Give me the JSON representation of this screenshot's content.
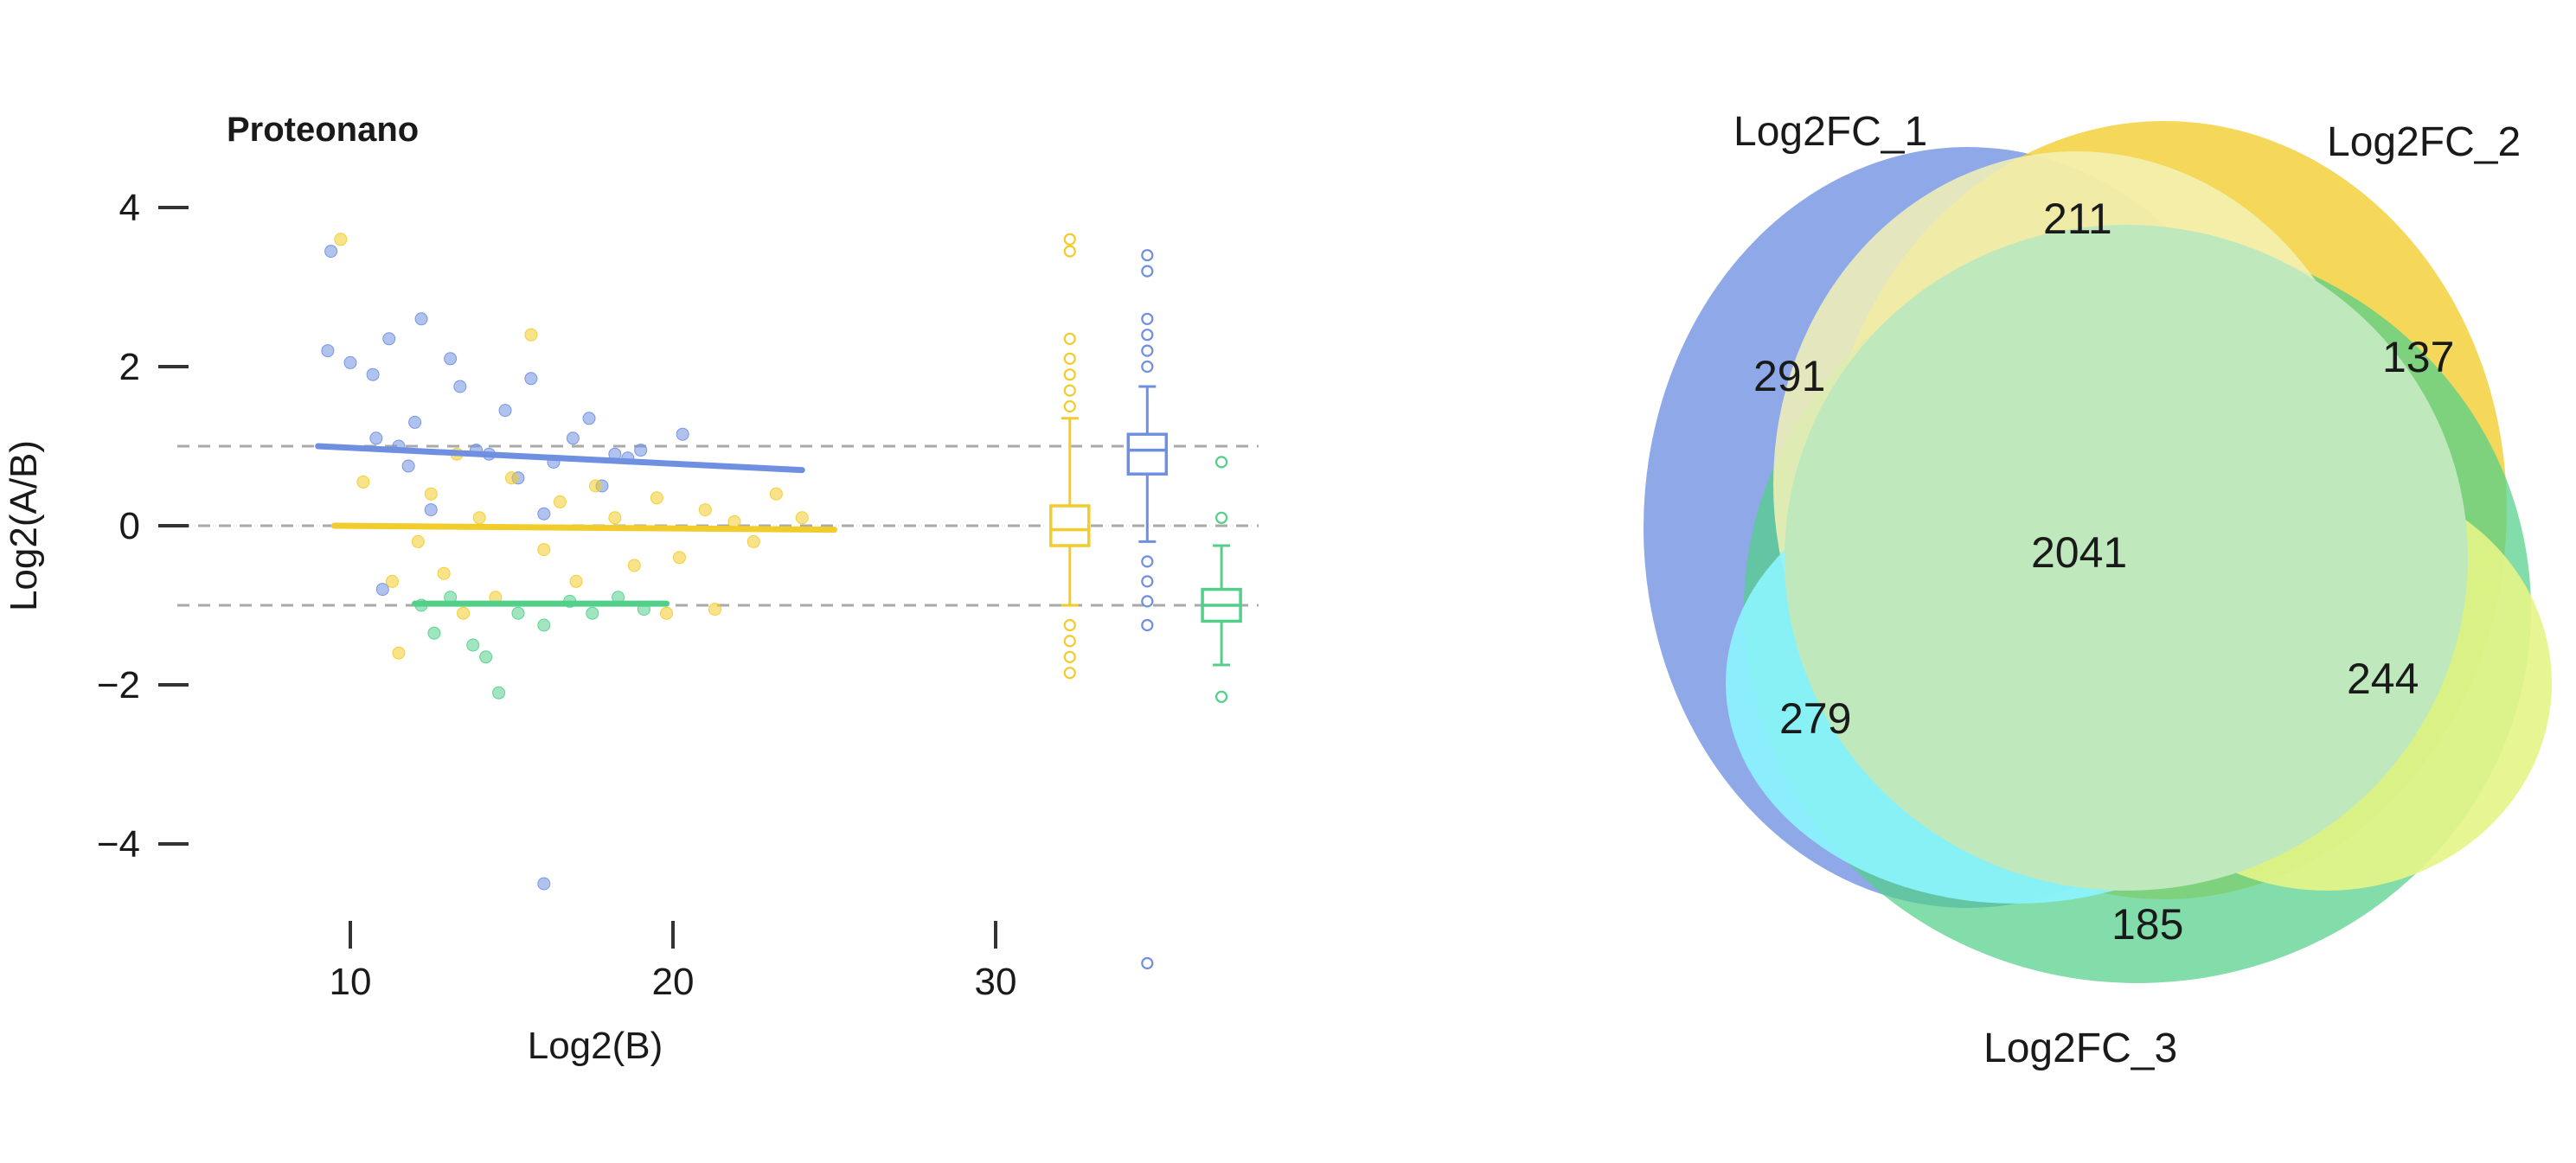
{
  "chart_data": [
    {
      "type": "scatter",
      "title": "Proteonano",
      "xlabel": "Log2(B)",
      "ylabel": "Log2(A/B)",
      "xlim": [
        8,
        36.5
      ],
      "ylim": [
        -5.2,
        4.5
      ],
      "x_ticks": [
        10,
        20,
        30
      ],
      "y_ticks": [
        4,
        2,
        0,
        -2,
        -4
      ],
      "y_tick_labels": [
        "4",
        "2",
        "0",
        "−2",
        "−4"
      ],
      "x_tick_labels": [
        "10",
        "20",
        "30"
      ],
      "reference_lines": [
        1,
        0,
        -1
      ],
      "grid": false,
      "legend": "none",
      "colors": {
        "blue": "#6f8fe0",
        "yellow": "#f2cc2a",
        "green": "#52d08a",
        "ref": "#aaaaaa"
      },
      "series": [
        {
          "color": "blue",
          "points": [
            [
              9.4,
              3.45
            ],
            [
              9.3,
              2.2
            ],
            [
              10.0,
              2.05
            ],
            [
              10.8,
              1.1
            ],
            [
              10.7,
              1.9
            ],
            [
              11.2,
              2.35
            ],
            [
              11.5,
              1.0
            ],
            [
              12.0,
              1.3
            ],
            [
              11.8,
              0.75
            ],
            [
              12.2,
              2.6
            ],
            [
              12.5,
              0.2
            ],
            [
              13.1,
              2.1
            ],
            [
              13.4,
              1.75
            ],
            [
              13.9,
              0.95
            ],
            [
              14.3,
              0.9
            ],
            [
              14.8,
              1.45
            ],
            [
              15.2,
              0.6
            ],
            [
              15.6,
              1.85
            ],
            [
              16.0,
              0.15
            ],
            [
              16.3,
              0.8
            ],
            [
              16.9,
              1.1
            ],
            [
              17.4,
              1.35
            ],
            [
              17.8,
              0.5
            ],
            [
              18.2,
              0.9
            ],
            [
              18.6,
              0.85
            ],
            [
              19.0,
              0.95
            ],
            [
              11.0,
              -0.8
            ],
            [
              16.0,
              -4.5
            ],
            [
              20.3,
              1.15
            ]
          ],
          "trend": {
            "x": [
              9.0,
              24.0
            ],
            "y": [
              1.0,
              0.7
            ]
          }
        },
        {
          "color": "yellow",
          "points": [
            [
              9.7,
              3.6
            ],
            [
              10.4,
              0.55
            ],
            [
              11.3,
              -0.7
            ],
            [
              11.5,
              -1.6
            ],
            [
              12.1,
              -0.2
            ],
            [
              12.5,
              0.4
            ],
            [
              12.9,
              -0.6
            ],
            [
              13.3,
              0.9
            ],
            [
              13.5,
              -1.1
            ],
            [
              14.0,
              0.1
            ],
            [
              14.5,
              -0.9
            ],
            [
              15.0,
              0.6
            ],
            [
              15.6,
              2.4
            ],
            [
              16.0,
              -0.3
            ],
            [
              16.5,
              0.3
            ],
            [
              17.0,
              -0.7
            ],
            [
              17.6,
              0.5
            ],
            [
              18.2,
              0.1
            ],
            [
              18.8,
              -0.5
            ],
            [
              19.5,
              0.35
            ],
            [
              20.2,
              -0.4
            ],
            [
              21.0,
              0.2
            ],
            [
              21.9,
              0.05
            ],
            [
              22.5,
              -0.2
            ],
            [
              23.2,
              0.4
            ],
            [
              24.0,
              0.1
            ],
            [
              19.8,
              -1.1
            ],
            [
              21.3,
              -1.05
            ]
          ],
          "trend": {
            "x": [
              9.5,
              25.0
            ],
            "y": [
              0.0,
              -0.05
            ]
          }
        },
        {
          "color": "green",
          "points": [
            [
              12.2,
              -1.0
            ],
            [
              12.6,
              -1.35
            ],
            [
              13.1,
              -0.9
            ],
            [
              13.8,
              -1.5
            ],
            [
              14.2,
              -1.65
            ],
            [
              14.6,
              -2.1
            ],
            [
              15.2,
              -1.1
            ],
            [
              16.0,
              -1.25
            ],
            [
              16.8,
              -0.95
            ],
            [
              17.5,
              -1.1
            ],
            [
              18.3,
              -0.9
            ],
            [
              19.1,
              -1.05
            ]
          ],
          "trend": {
            "x": [
              12.0,
              19.8
            ],
            "y": [
              -0.98,
              -0.98
            ]
          }
        }
      ],
      "boxplots": [
        {
          "color": "yellow",
          "x": 32.3,
          "min": -1.0,
          "q1": -0.25,
          "median": -0.05,
          "q3": 0.25,
          "max": 1.35,
          "outliers": [
            1.5,
            1.7,
            1.9,
            2.1,
            2.35,
            -1.25,
            -1.45,
            -1.65,
            -1.85,
            3.45,
            3.6
          ]
        },
        {
          "color": "blue",
          "x": 34.7,
          "min": -0.2,
          "q1": 0.65,
          "median": 0.95,
          "q3": 1.15,
          "max": 1.75,
          "outliers": [
            2.0,
            2.2,
            2.4,
            2.6,
            3.2,
            3.4,
            -0.45,
            -0.7,
            -0.95,
            -1.25,
            -5.5
          ]
        },
        {
          "color": "green",
          "x": 37.0,
          "min": -1.75,
          "q1": -1.2,
          "median": -1.0,
          "q3": -0.8,
          "max": -0.25,
          "outliers": [
            0.1,
            0.8,
            -2.15
          ]
        }
      ]
    },
    {
      "type": "venn",
      "sets": [
        "Log2FC_1",
        "Log2FC_2",
        "Log2FC_3"
      ],
      "colors": {
        "set1": "#6f8fe0",
        "set2": "#f2cc2a",
        "set3": "#52d08a"
      },
      "counts": {
        "only_1": "291",
        "only_2": "137",
        "only_3": "185",
        "1_2": "211",
        "2_3": "244",
        "1_3": "279",
        "1_2_3": "2041"
      }
    }
  ]
}
